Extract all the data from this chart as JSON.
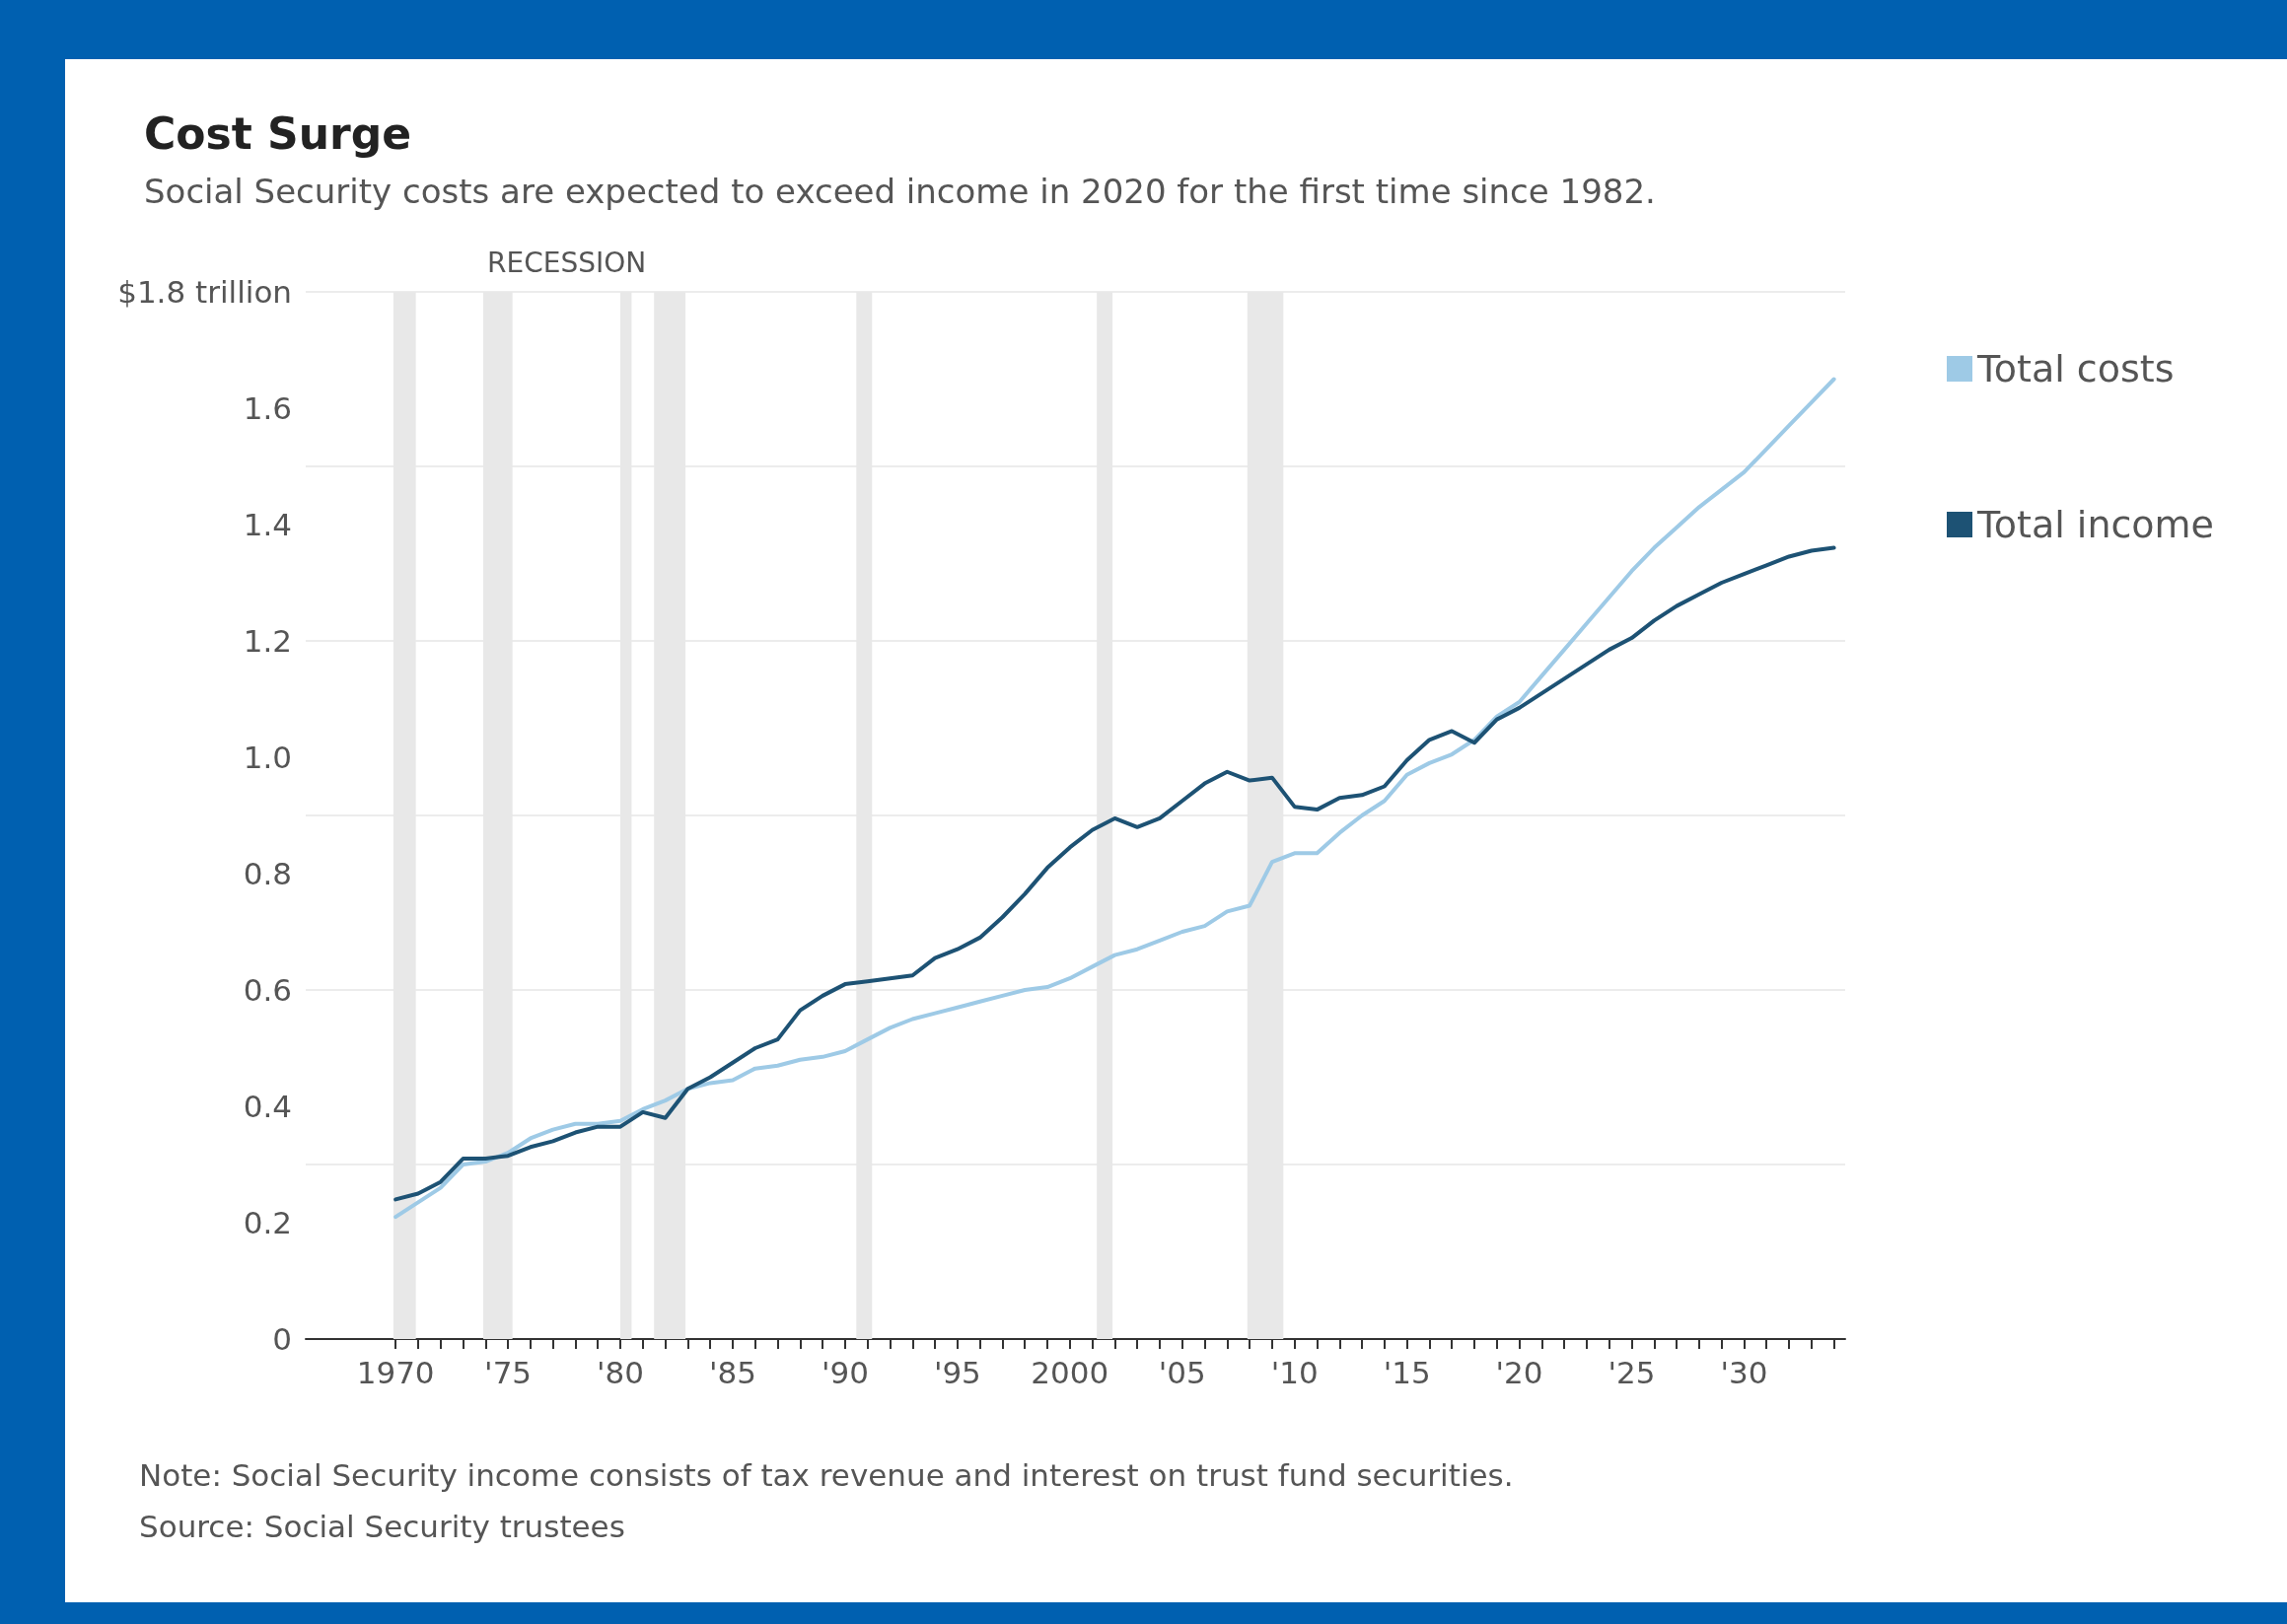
{
  "chart_data": {
    "type": "line",
    "title": "Cost Surge",
    "subtitle": "Social Security costs are expected to exceed income in 2020 for the first time since 1982.",
    "x": [
      1970,
      1971,
      1972,
      1973,
      1974,
      1975,
      1976,
      1977,
      1978,
      1979,
      1980,
      1981,
      1982,
      1983,
      1984,
      1985,
      1986,
      1987,
      1988,
      1989,
      1990,
      1991,
      1992,
      1993,
      1994,
      1995,
      1996,
      1997,
      1998,
      1999,
      2000,
      2001,
      2002,
      2003,
      2004,
      2005,
      2006,
      2007,
      2008,
      2009,
      2010,
      2011,
      2012,
      2013,
      2014,
      2015,
      2016,
      2017,
      2018,
      2019,
      2020,
      2021,
      2022,
      2023,
      2024,
      2025,
      2026,
      2027,
      2028,
      2029,
      2030,
      2031,
      2032,
      2033,
      2034
    ],
    "series": [
      {
        "name": "Total costs",
        "color": "#9ecae6",
        "values": [
          0.21,
          0.235,
          0.26,
          0.3,
          0.305,
          0.32,
          0.345,
          0.36,
          0.37,
          0.37,
          0.375,
          0.395,
          0.41,
          0.43,
          0.44,
          0.445,
          0.465,
          0.47,
          0.48,
          0.485,
          0.495,
          0.515,
          0.535,
          0.55,
          0.56,
          0.57,
          0.58,
          0.59,
          0.6,
          0.605,
          0.62,
          0.64,
          0.66,
          0.67,
          0.685,
          0.7,
          0.71,
          0.735,
          0.745,
          0.82,
          0.835,
          0.835,
          0.87,
          0.9,
          0.925,
          0.97,
          0.99,
          1.005,
          1.03,
          1.07,
          1.095,
          1.14,
          1.185,
          1.23,
          1.275,
          1.32,
          1.36,
          1.395,
          1.43,
          1.46,
          1.49,
          1.53,
          1.57,
          1.61,
          1.65
        ]
      },
      {
        "name": "Total income",
        "color": "#1d5274",
        "values": [
          0.24,
          0.25,
          0.27,
          0.31,
          0.31,
          0.315,
          0.33,
          0.34,
          0.355,
          0.365,
          0.365,
          0.39,
          0.38,
          0.43,
          0.45,
          0.475,
          0.5,
          0.515,
          0.565,
          0.59,
          0.61,
          0.615,
          0.62,
          0.625,
          0.655,
          0.67,
          0.69,
          0.725,
          0.765,
          0.81,
          0.845,
          0.875,
          0.895,
          0.88,
          0.895,
          0.925,
          0.955,
          0.975,
          0.96,
          0.965,
          0.915,
          0.91,
          0.93,
          0.935,
          0.95,
          0.995,
          1.03,
          1.045,
          1.025,
          1.065,
          1.085,
          1.11,
          1.135,
          1.16,
          1.185,
          1.205,
          1.235,
          1.26,
          1.28,
          1.3,
          1.315,
          1.33,
          1.345,
          1.355,
          1.36
        ]
      }
    ],
    "xlim": [
      1966,
      2034.5
    ],
    "xticks": [
      {
        "value": 1970,
        "label": "1970"
      },
      {
        "value": 1971,
        "label": null
      },
      {
        "value": 1972,
        "label": null
      },
      {
        "value": 1973,
        "label": null
      },
      {
        "value": 1974,
        "label": null
      },
      {
        "value": 1975,
        "label": "'75"
      },
      {
        "value": 1976,
        "label": null
      },
      {
        "value": 1977,
        "label": null
      },
      {
        "value": 1978,
        "label": null
      },
      {
        "value": 1979,
        "label": null
      },
      {
        "value": 1980,
        "label": "'80"
      },
      {
        "value": 1981,
        "label": null
      },
      {
        "value": 1982,
        "label": null
      },
      {
        "value": 1983,
        "label": null
      },
      {
        "value": 1984,
        "label": null
      },
      {
        "value": 1985,
        "label": "'85"
      },
      {
        "value": 1986,
        "label": null
      },
      {
        "value": 1987,
        "label": null
      },
      {
        "value": 1988,
        "label": null
      },
      {
        "value": 1989,
        "label": null
      },
      {
        "value": 1990,
        "label": "'90"
      },
      {
        "value": 1991,
        "label": null
      },
      {
        "value": 1992,
        "label": null
      },
      {
        "value": 1993,
        "label": null
      },
      {
        "value": 1994,
        "label": null
      },
      {
        "value": 1995,
        "label": "'95"
      },
      {
        "value": 1996,
        "label": null
      },
      {
        "value": 1997,
        "label": null
      },
      {
        "value": 1998,
        "label": null
      },
      {
        "value": 1999,
        "label": null
      },
      {
        "value": 2000,
        "label": "2000"
      },
      {
        "value": 2001,
        "label": null
      },
      {
        "value": 2002,
        "label": null
      },
      {
        "value": 2003,
        "label": null
      },
      {
        "value": 2004,
        "label": null
      },
      {
        "value": 2005,
        "label": "'05"
      },
      {
        "value": 2006,
        "label": null
      },
      {
        "value": 2007,
        "label": null
      },
      {
        "value": 2008,
        "label": null
      },
      {
        "value": 2009,
        "label": null
      },
      {
        "value": 2010,
        "label": "'10"
      },
      {
        "value": 2011,
        "label": null
      },
      {
        "value": 2012,
        "label": null
      },
      {
        "value": 2013,
        "label": null
      },
      {
        "value": 2014,
        "label": null
      },
      {
        "value": 2015,
        "label": "'15"
      },
      {
        "value": 2016,
        "label": null
      },
      {
        "value": 2017,
        "label": null
      },
      {
        "value": 2018,
        "label": null
      },
      {
        "value": 2019,
        "label": null
      },
      {
        "value": 2020,
        "label": "'20"
      },
      {
        "value": 2021,
        "label": null
      },
      {
        "value": 2022,
        "label": null
      },
      {
        "value": 2023,
        "label": null
      },
      {
        "value": 2024,
        "label": null
      },
      {
        "value": 2025,
        "label": "'25"
      },
      {
        "value": 2026,
        "label": null
      },
      {
        "value": 2027,
        "label": null
      },
      {
        "value": 2028,
        "label": null
      },
      {
        "value": 2029,
        "label": null
      },
      {
        "value": 2030,
        "label": "'30"
      },
      {
        "value": 2031,
        "label": null
      },
      {
        "value": 2032,
        "label": null
      },
      {
        "value": 2033,
        "label": null
      },
      {
        "value": 2034,
        "label": null
      }
    ],
    "ylim": [
      0,
      1.8
    ],
    "yticks": [
      0,
      0.2,
      0.4,
      0.6,
      0.8,
      {
        "value": 1,
        "label": "1.0"
      },
      1.2,
      1.4,
      1.6,
      {
        "value": 1.8,
        "label": "$1.8 trillion"
      }
    ],
    "grid": "y",
    "legend": "top right",
    "marker": "none",
    "line_style": "solid",
    "bands": [
      {
        "axis": "x",
        "from": 1969.9,
        "to": 1970.9,
        "color": "#e8e8e8"
      },
      {
        "axis": "x",
        "from": 1973.9,
        "to": 1975.2,
        "color": "#e8e8e8",
        "label": "RECESSION"
      },
      {
        "axis": "x",
        "from": 1980.0,
        "to": 1980.5,
        "color": "#e8e8e8"
      },
      {
        "axis": "x",
        "from": 1981.5,
        "to": 1982.9,
        "color": "#e8e8e8"
      },
      {
        "axis": "x",
        "from": 1990.5,
        "to": 1991.2,
        "color": "#e8e8e8"
      },
      {
        "axis": "x",
        "from": 2001.2,
        "to": 2001.9,
        "color": "#e8e8e8"
      },
      {
        "axis": "x",
        "from": 2007.9,
        "to": 2009.5,
        "color": "#e8e8e8"
      }
    ],
    "annotations": [
      "Note: Social Security income consists of tax revenue and interest on trust fund securities.",
      "Source: Social Security trustees"
    ]
  }
}
